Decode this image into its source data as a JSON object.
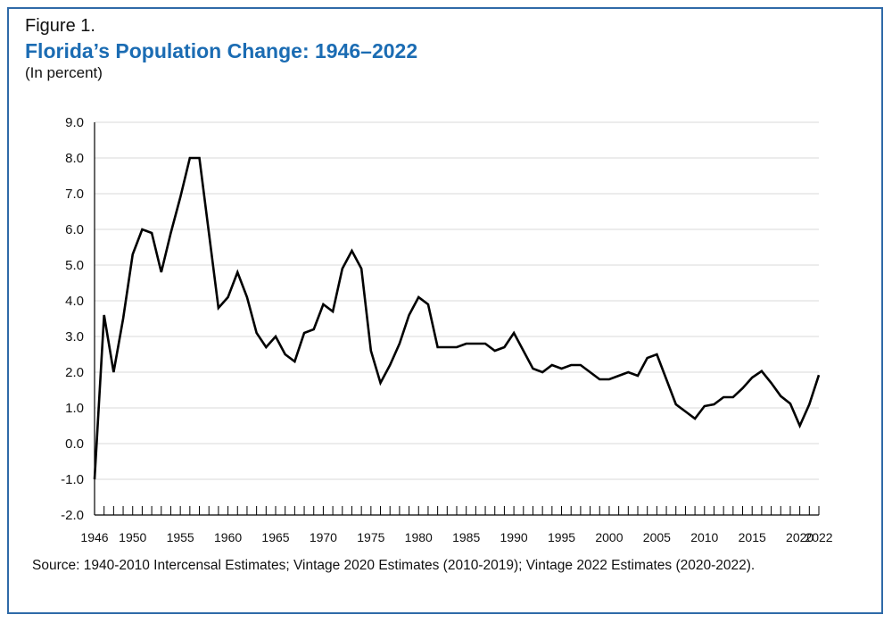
{
  "header": {
    "figure_label": "Figure 1.",
    "title": "Florida’s Population Change: 1946–2022",
    "subtitle": "(In percent)"
  },
  "source": "Source: 1940-2010 Intercensal Estimates; Vintage 2020 Estimates (2010-2019); Vintage 2022 Estimates (2020-2022).",
  "colors": {
    "accent": "#1b6cb3",
    "border": "#2f6aa8",
    "line": "#000000",
    "grid": "#d9d9d9"
  },
  "chart_data": {
    "type": "line",
    "title": "Florida’s Population Change: 1946–2022",
    "ylabel": "(In percent)",
    "xlabel": "",
    "xlim": [
      1946,
      2022
    ],
    "ylim": [
      -2.0,
      9.0
    ],
    "grid": true,
    "y_ticks": [
      "9.0",
      "8.0",
      "7.0",
      "6.0",
      "5.0",
      "4.0",
      "3.0",
      "2.0",
      "1.0",
      "0.0",
      "-1.0",
      "-2.0"
    ],
    "x_tick_labels": [
      "1946",
      "1950",
      "1955",
      "1960",
      "1965",
      "1970",
      "1975",
      "1980",
      "1985",
      "1990",
      "1995",
      "2000",
      "2005",
      "2010",
      "2015",
      "2020",
      "2022"
    ],
    "x": [
      1946,
      1947,
      1948,
      1949,
      1950,
      1951,
      1952,
      1953,
      1954,
      1955,
      1956,
      1957,
      1958,
      1959,
      1960,
      1961,
      1962,
      1963,
      1964,
      1965,
      1966,
      1967,
      1968,
      1969,
      1970,
      1971,
      1972,
      1973,
      1974,
      1975,
      1976,
      1977,
      1978,
      1979,
      1980,
      1981,
      1982,
      1983,
      1984,
      1985,
      1986,
      1987,
      1988,
      1989,
      1990,
      1991,
      1992,
      1993,
      1994,
      1995,
      1996,
      1997,
      1998,
      1999,
      2000,
      2001,
      2002,
      2003,
      2004,
      2005,
      2006,
      2007,
      2008,
      2009,
      2010,
      2011,
      2012,
      2013,
      2014,
      2015,
      2016,
      2017,
      2018,
      2019,
      2020,
      2021,
      2022
    ],
    "series": [
      {
        "values": [
          -1.0,
          3.6,
          2.0,
          3.5,
          5.3,
          6.0,
          5.9,
          4.8,
          5.9,
          6.9,
          8.0,
          8.0,
          5.9,
          3.8,
          4.1,
          4.8,
          4.1,
          3.1,
          2.7,
          3.0,
          2.5,
          2.3,
          3.1,
          3.2,
          3.9,
          3.7,
          4.9,
          5.4,
          4.9,
          2.6,
          1.7,
          2.2,
          2.8,
          3.6,
          4.1,
          3.9,
          2.7,
          2.7,
          2.7,
          2.8,
          2.8,
          2.8,
          2.6,
          2.7,
          3.1,
          2.6,
          2.1,
          2.0,
          2.2,
          2.1,
          2.2,
          2.2,
          2.0,
          1.8,
          1.8,
          1.9,
          2.0,
          1.9,
          2.4,
          2.5,
          1.8,
          1.1,
          0.9,
          0.7,
          1.05,
          1.1,
          1.3,
          1.3,
          1.55,
          1.85,
          2.03,
          1.7,
          1.33,
          1.12,
          0.5,
          1.1,
          1.92
        ]
      }
    ]
  }
}
